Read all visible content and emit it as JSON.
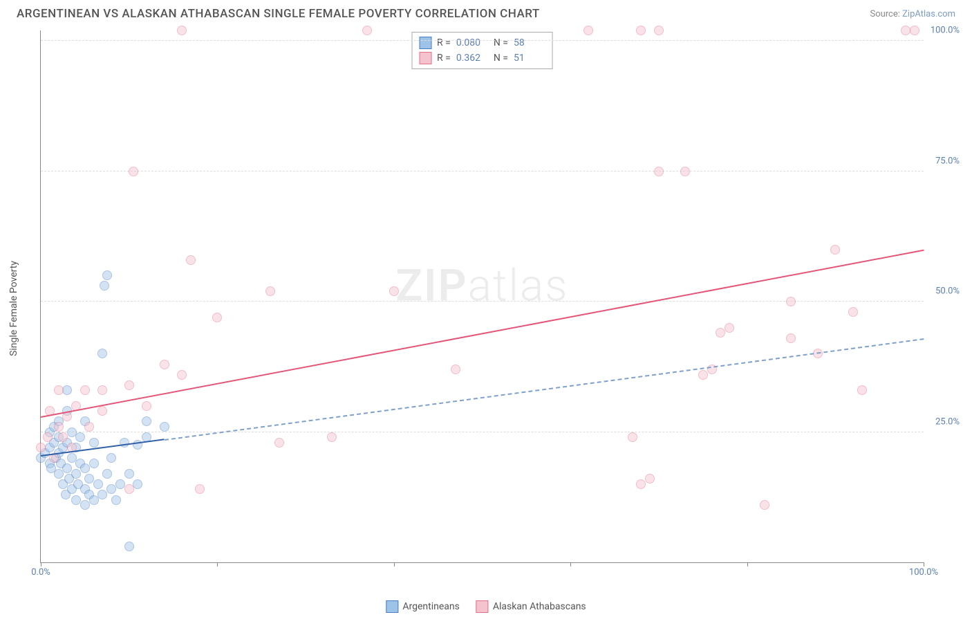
{
  "header": {
    "title": "ARGENTINEAN VS ALASKAN ATHABASCAN SINGLE FEMALE POVERTY CORRELATION CHART",
    "source_prefix": "Source: ",
    "source_name": "ZipAtlas.com"
  },
  "chart": {
    "type": "scatter",
    "ylabel": "Single Female Poverty",
    "background_color": "#ffffff",
    "grid_color": "#dddddd",
    "axis_color": "#888888",
    "tick_color": "#5b7fb3",
    "xlim": [
      0,
      100
    ],
    "ylim": [
      0,
      102
    ],
    "xticks": [
      0,
      20,
      40,
      60,
      80,
      100
    ],
    "xtick_labels": [
      "0.0%",
      "",
      "",
      "",
      "",
      "100.0%"
    ],
    "yticks": [
      25,
      50,
      75,
      100
    ],
    "ytick_labels": [
      "25.0%",
      "50.0%",
      "75.0%",
      "100.0%"
    ],
    "marker_radius": 7,
    "marker_opacity": 0.45,
    "watermark": "ZIPatlas",
    "series": [
      {
        "key": "argentineans",
        "label": "Argentineans",
        "fill": "#9ec3e8",
        "stroke": "#4a7bc0",
        "reg_color": "#2f5fa8",
        "reg_dash_color": "#7ea0cc",
        "R": "0.080",
        "N": "58",
        "regression": {
          "x1": 0,
          "y1": 20.5,
          "x2": 100,
          "y2": 43,
          "solid_until_x": 14
        },
        "points": [
          [
            0,
            20
          ],
          [
            0.5,
            21
          ],
          [
            1,
            19
          ],
          [
            1,
            22
          ],
          [
            1,
            25
          ],
          [
            1.2,
            18
          ],
          [
            1.5,
            23
          ],
          [
            1.5,
            26
          ],
          [
            1.7,
            20
          ],
          [
            2,
            17
          ],
          [
            2,
            21
          ],
          [
            2,
            24
          ],
          [
            2,
            27
          ],
          [
            2.3,
            19
          ],
          [
            2.5,
            15
          ],
          [
            2.5,
            22
          ],
          [
            2.8,
            13
          ],
          [
            3,
            18
          ],
          [
            3,
            23
          ],
          [
            3,
            29
          ],
          [
            3,
            33
          ],
          [
            3.2,
            16
          ],
          [
            3.5,
            14
          ],
          [
            3.5,
            20
          ],
          [
            3.5,
            25
          ],
          [
            4,
            12
          ],
          [
            4,
            17
          ],
          [
            4,
            22
          ],
          [
            4.2,
            15
          ],
          [
            4.5,
            19
          ],
          [
            4.5,
            24
          ],
          [
            5,
            11
          ],
          [
            5,
            14
          ],
          [
            5,
            18
          ],
          [
            5,
            27
          ],
          [
            5.5,
            13
          ],
          [
            5.5,
            16
          ],
          [
            6,
            12
          ],
          [
            6,
            19
          ],
          [
            6,
            23
          ],
          [
            6.5,
            15
          ],
          [
            7,
            13
          ],
          [
            7,
            40
          ],
          [
            7.2,
            53
          ],
          [
            7.5,
            55
          ],
          [
            7.5,
            17
          ],
          [
            8,
            14
          ],
          [
            8,
            20
          ],
          [
            8.5,
            12
          ],
          [
            9,
            15
          ],
          [
            9.5,
            23
          ],
          [
            10,
            3
          ],
          [
            10,
            17
          ],
          [
            11,
            15
          ],
          [
            11,
            22.5
          ],
          [
            12,
            27
          ],
          [
            12,
            24
          ],
          [
            14,
            26
          ]
        ]
      },
      {
        "key": "athabascans",
        "label": "Alaskan Athabascans",
        "fill": "#f5c3cd",
        "stroke": "#e26f8a",
        "reg_color": "#e55577",
        "R": "0.362",
        "N": "51",
        "regression": {
          "x1": 0,
          "y1": 28,
          "x2": 100,
          "y2": 60,
          "solid_until_x": 100
        },
        "points": [
          [
            0,
            22
          ],
          [
            0.8,
            24
          ],
          [
            1,
            29
          ],
          [
            1.5,
            20
          ],
          [
            2,
            26
          ],
          [
            2,
            33
          ],
          [
            2.5,
            24
          ],
          [
            3,
            28
          ],
          [
            3.5,
            22
          ],
          [
            4,
            30
          ],
          [
            5,
            33
          ],
          [
            5.5,
            26
          ],
          [
            7,
            29
          ],
          [
            7,
            33
          ],
          [
            10,
            14
          ],
          [
            10,
            34
          ],
          [
            10.5,
            75
          ],
          [
            12,
            30
          ],
          [
            14,
            38
          ],
          [
            16,
            36
          ],
          [
            16,
            102
          ],
          [
            17,
            58
          ],
          [
            18,
            14
          ],
          [
            20,
            47
          ],
          [
            26,
            52
          ],
          [
            27,
            23
          ],
          [
            33,
            24
          ],
          [
            37,
            102
          ],
          [
            40,
            52
          ],
          [
            47,
            37
          ],
          [
            62,
            102
          ],
          [
            67,
            24
          ],
          [
            68,
            15
          ],
          [
            68,
            102
          ],
          [
            69,
            16
          ],
          [
            70,
            75
          ],
          [
            70,
            102
          ],
          [
            73,
            75
          ],
          [
            75,
            36
          ],
          [
            76,
            37
          ],
          [
            77,
            44
          ],
          [
            78,
            45
          ],
          [
            82,
            11
          ],
          [
            85,
            43
          ],
          [
            85,
            50
          ],
          [
            88,
            40
          ],
          [
            90,
            60
          ],
          [
            92,
            48
          ],
          [
            93,
            33
          ],
          [
            98,
            102
          ],
          [
            99,
            102
          ]
        ]
      }
    ]
  },
  "legend_top": {
    "r_label": "R =",
    "n_label": "N ="
  }
}
